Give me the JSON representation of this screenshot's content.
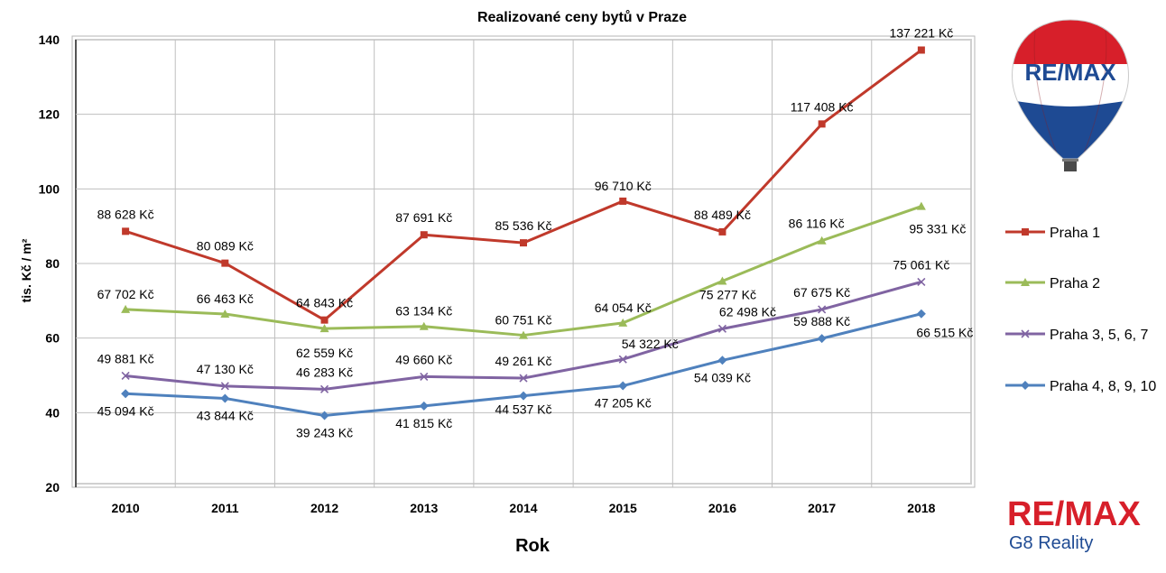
{
  "chart_data": {
    "type": "line",
    "title": "Realizované ceny bytů v Praze",
    "xlabel": "Rok",
    "ylabel": "tis. Kč / m²",
    "ylim": [
      20,
      140
    ],
    "yticks": [
      "20",
      "40",
      "60",
      "80",
      "100",
      "120",
      "140"
    ],
    "categories": [
      "2010",
      "2011",
      "2012",
      "2013",
      "2014",
      "2015",
      "2016",
      "2017",
      "2018"
    ],
    "grid": true,
    "legend_position": "right",
    "series": [
      {
        "name": "Praha 1",
        "color": "#c0392b",
        "marker": "square",
        "values": [
          88.628,
          80.089,
          64.843,
          87.691,
          85.536,
          96.71,
          88.489,
          117.408,
          137.221
        ],
        "labels": [
          "88 628 Kč",
          "80 089 Kč",
          "64 843 Kč",
          "87 691 Kč",
          "85 536 Kč",
          "96 710 Kč",
          "88 489 Kč",
          "117 408 Kč",
          "137 221 Kč"
        ]
      },
      {
        "name": "Praha 2",
        "color": "#9bbb59",
        "marker": "triangle",
        "values": [
          67.702,
          66.463,
          62.559,
          63.134,
          60.751,
          64.054,
          75.277,
          86.116,
          95.331
        ],
        "labels": [
          "67 702 Kč",
          "66 463 Kč",
          "62 559 Kč",
          "63 134 Kč",
          "60 751 Kč",
          "64 054 Kč",
          "75 277 Kč",
          "86 116 Kč",
          "95 331 Kč"
        ]
      },
      {
        "name": "Praha 3, 5, 6, 7",
        "color": "#8064a2",
        "marker": "x",
        "values": [
          49.881,
          47.13,
          46.283,
          49.66,
          49.261,
          54.322,
          62.498,
          67.675,
          75.061
        ],
        "labels": [
          "49 881 Kč",
          "47 130 Kč",
          "46 283 Kč",
          "49 660 Kč",
          "49 261 Kč",
          "54 322 Kč",
          "62 498 Kč",
          "67 675 Kč",
          "75 061 Kč"
        ]
      },
      {
        "name": "Praha 4, 8, 9, 10",
        "color": "#4f81bd",
        "marker": "diamond",
        "values": [
          45.094,
          43.844,
          39.243,
          41.815,
          44.537,
          47.205,
          54.039,
          59.888,
          66.515
        ],
        "labels": [
          "45 094 Kč",
          "43 844 Kč",
          "39 243 Kč",
          "41 815 Kč",
          "44 537 Kč",
          "47 205 Kč",
          "54 039 Kč",
          "59 888 Kč",
          "66 515 Kč"
        ]
      }
    ]
  },
  "branding": {
    "balloon_text": "RE/MAX",
    "logo_main": "RE/MAX",
    "logo_sub": "G8 Reality",
    "red": "#d71f2a",
    "blue": "#1e4a93"
  }
}
